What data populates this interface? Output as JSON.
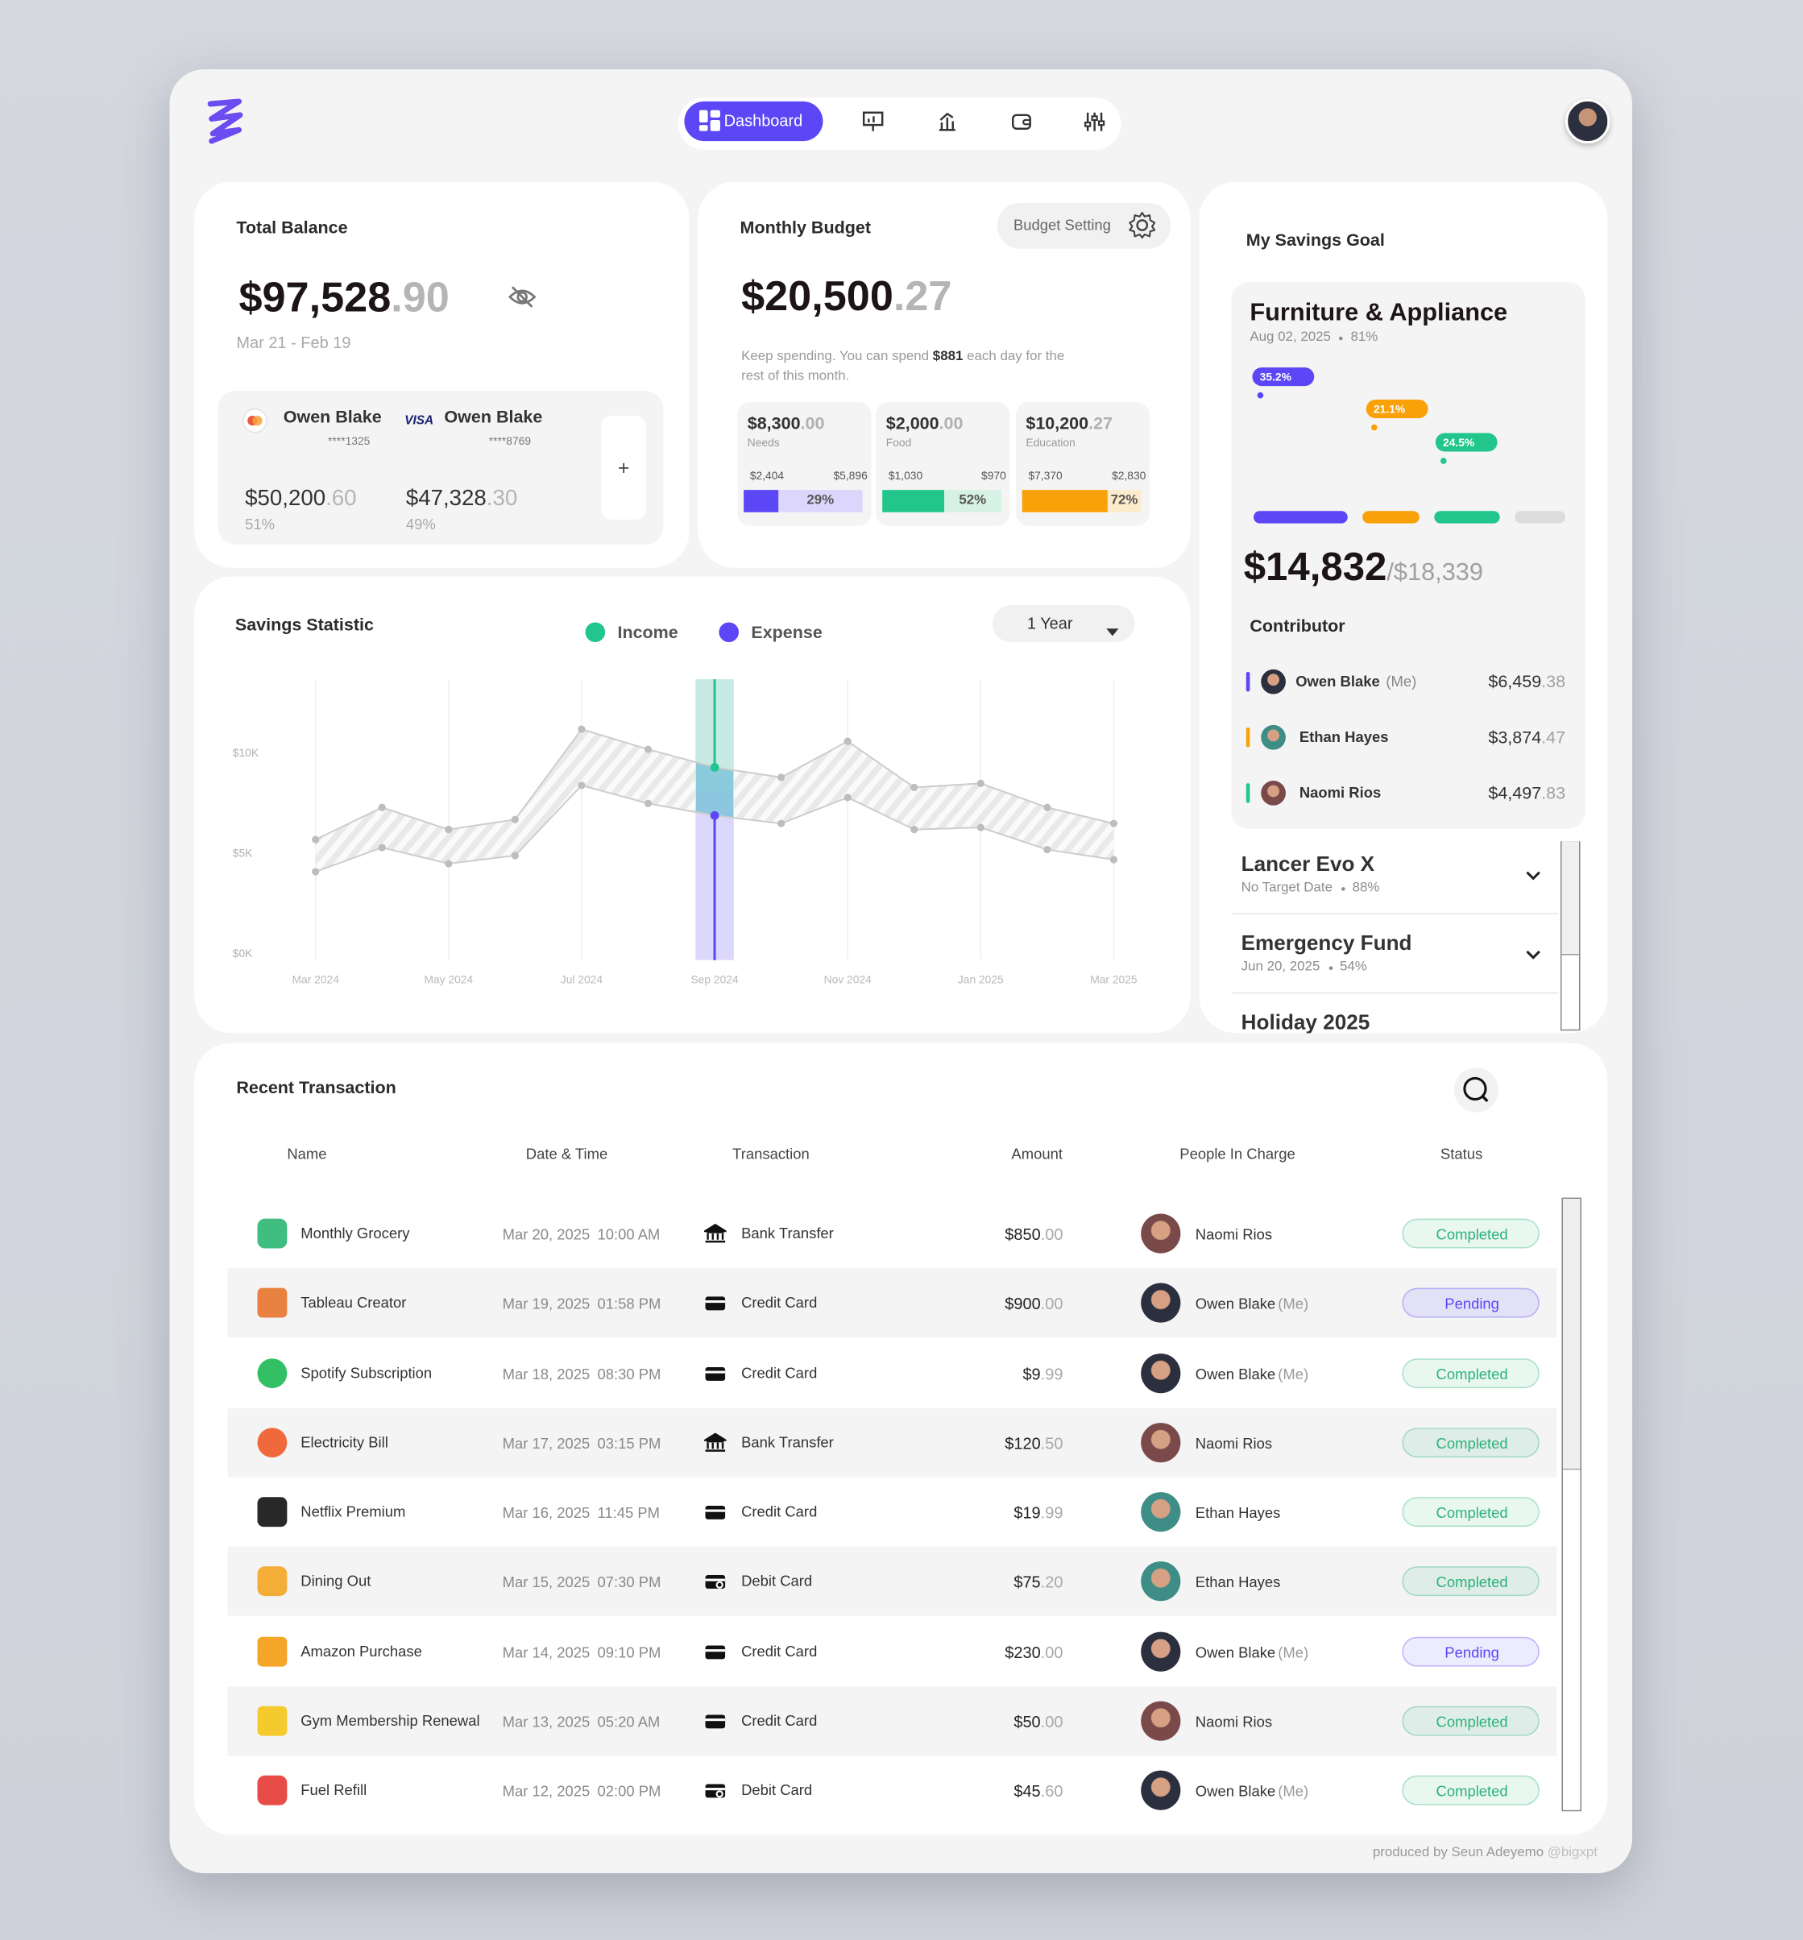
{
  "nav": {
    "active": "Dashboard"
  },
  "total_balance": {
    "title": "Total Balance",
    "amount": "$97,528",
    "cents": ".90",
    "period": "Mar 21 - Feb 19",
    "cards": [
      {
        "holder": "Owen Blake",
        "number": "****1325",
        "amount": "$50,200",
        "cents": ".60",
        "share": "51%"
      },
      {
        "brand": "VISA",
        "holder": "Owen Blake",
        "number": "****8769",
        "amount": "$47,328",
        "cents": ".30",
        "share": "49%"
      }
    ],
    "add": "+"
  },
  "monthly_budget": {
    "title": "Monthly Budget",
    "settings": "Budget Setting",
    "amount": "$20,500",
    "cents": ".27",
    "note": [
      "Keep spending. You can spend",
      "$881",
      "each day for the rest of this month."
    ],
    "categories": [
      {
        "amount": "$8,300",
        "cents": ".00",
        "name": "Needs",
        "spent": "$2,404",
        "remaining": "$5,896",
        "percent": 29,
        "percent_label": "29%",
        "color": "#5b47f5",
        "track": "#dcd6fc"
      },
      {
        "amount": "$2,000",
        "cents": ".00",
        "name": "Food",
        "spent": "$1,030",
        "remaining": "$970",
        "percent": 52,
        "percent_label": "52%",
        "color": "#22c58b",
        "track": "#d5f2e5"
      },
      {
        "amount": "$10,200",
        "cents": ".27",
        "name": "Education",
        "spent": "$7,370",
        "remaining": "$2,830",
        "percent": 72,
        "percent_label": "72%",
        "color": "#f9a109",
        "track": "#fdeccb"
      }
    ]
  },
  "savings_goal": {
    "title": "My Savings Goal",
    "featured": {
      "name": "Furniture & Appliance",
      "date": "Aug 02, 2025",
      "progress": "81%",
      "shares": [
        {
          "value": 35.2,
          "label": "35.2%",
          "color": "#5b47f5"
        },
        {
          "value": 21.1,
          "label": "21.1%",
          "color": "#f9a109"
        },
        {
          "value": 24.5,
          "label": "24.5%",
          "color": "#22c58b"
        }
      ],
      "saved": "$14,832",
      "target": "/$18,339",
      "contributors_title": "Contributor",
      "contributors": [
        {
          "name": "Owen Blake",
          "tag": "(Me)",
          "amount": "$6,459",
          "cents": ".38",
          "color": "#5b47f5"
        },
        {
          "name": "Ethan Hayes",
          "amount": "$3,874",
          "cents": ".47",
          "color": "#f9a109"
        },
        {
          "name": "Naomi Rios",
          "amount": "$4,497",
          "cents": ".83",
          "color": "#22c58b"
        }
      ]
    },
    "others": [
      {
        "name": "Lancer Evo X",
        "date": "No Target Date",
        "progress": "88%"
      },
      {
        "name": "Emergency Fund",
        "date": "Jun 20, 2025",
        "progress": "54%"
      },
      {
        "name": "Holiday 2025"
      }
    ]
  },
  "chart_data": {
    "type": "line",
    "title": "Savings Statistic",
    "period_selector": "1 Year",
    "categories": [
      "Mar 2024",
      null,
      "May 2024",
      null,
      "Jul 2024",
      null,
      "Sep 2024",
      null,
      "Nov 2024",
      null,
      "Jan 2025",
      null,
      "Mar 2025"
    ],
    "series": [
      {
        "name": "Income",
        "color": "#22c58b",
        "values": [
          5700,
          7300,
          6200,
          6700,
          11200,
          10200,
          9300,
          8800,
          10600,
          8300,
          8500,
          7300,
          6500
        ]
      },
      {
        "name": "Expense",
        "color": "#5b47f5",
        "values": [
          4100,
          5300,
          4500,
          4900,
          8400,
          7500,
          6900,
          6500,
          7800,
          6200,
          6300,
          5200,
          4700
        ]
      }
    ],
    "ylim": [
      0,
      14000
    ],
    "yticks": [
      {
        "value": 0,
        "label": "$0K"
      },
      {
        "value": 5000,
        "label": "$5K"
      },
      {
        "value": 10000,
        "label": "$10K"
      }
    ],
    "xgrid": true
  },
  "transactions": {
    "title": "Recent Transaction",
    "columns": [
      "Name",
      "Date & Time",
      "Transaction",
      "Amount",
      "People In Charge",
      "Status"
    ],
    "rows": [
      {
        "name": "Monthly Grocery",
        "date": "Mar 20, 2025",
        "time": "10:00 AM",
        "method": "Bank Transfer",
        "amount": "$850",
        "cents": ".00",
        "person": "Naomi Rios",
        "status": "Completed",
        "status_color": "#2bb27a"
      },
      {
        "name": "Tableau Creator",
        "date": "Mar 19, 2025",
        "time": "01:58 PM",
        "method": "Credit Card",
        "amount": "$900",
        "cents": ".00",
        "person": "Owen Blake",
        "tag": "(Me)",
        "status": "Pending",
        "status_color": "#5b47f5"
      },
      {
        "name": "Spotify Subscription",
        "date": "Mar 18, 2025",
        "time": "08:30 PM",
        "method": "Credit Card",
        "amount": "$9",
        "cents": ".99",
        "person": "Owen Blake",
        "tag": "(Me)",
        "status": "Completed",
        "status_color": "#2bb27a"
      },
      {
        "name": "Electricity Bill",
        "date": "Mar 17, 2025",
        "time": "03:15 PM",
        "method": "Bank Transfer",
        "amount": "$120",
        "cents": ".50",
        "person": "Naomi Rios",
        "status": "Completed",
        "status_color": "#2bb27a"
      },
      {
        "name": "Netflix Premium",
        "date": "Mar 16, 2025",
        "time": "11:45 PM",
        "method": "Credit Card",
        "amount": "$19",
        "cents": ".99",
        "person": "Ethan Hayes",
        "status": "Completed",
        "status_color": "#2bb27a"
      },
      {
        "name": "Dining Out",
        "date": "Mar 15, 2025",
        "time": "07:30 PM",
        "method": "Debit Card",
        "amount": "$75",
        "cents": ".20",
        "person": "Ethan Hayes",
        "status": "Completed",
        "status_color": "#2bb27a"
      },
      {
        "name": "Amazon Purchase",
        "date": "Mar 14, 2025",
        "time": "09:10 PM",
        "method": "Credit Card",
        "amount": "$230",
        "cents": ".00",
        "person": "Owen Blake",
        "tag": "(Me)",
        "status": "Pending",
        "status_color": "#5b47f5"
      },
      {
        "name": "Gym Membership Renewal",
        "date": "Mar 13, 2025",
        "time": "05:20 AM",
        "method": "Credit Card",
        "amount": "$50",
        "cents": ".00",
        "person": "Naomi Rios",
        "status": "Completed",
        "status_color": "#2bb27a"
      },
      {
        "name": "Fuel Refill",
        "date": "Mar 12, 2025",
        "time": "02:00 PM",
        "method": "Debit Card",
        "amount": "$45",
        "cents": ".60",
        "person": "Owen Blake",
        "tag": "(Me)",
        "status": "Completed",
        "status_color": "#2bb27a"
      }
    ]
  },
  "footer": {
    "credit": "produced by Seun Adeyemo",
    "handle": "@bigxpt"
  }
}
